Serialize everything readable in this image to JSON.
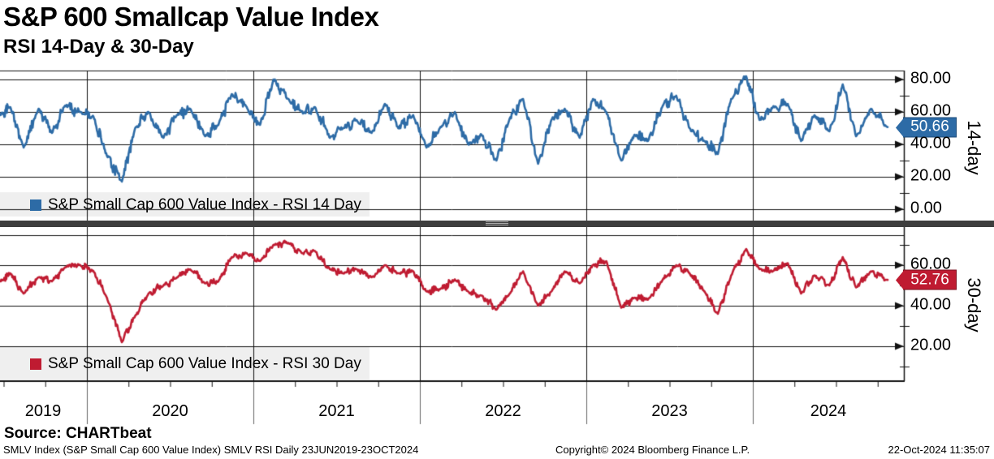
{
  "title": "S&P 600 Smallcap Value Index",
  "subtitle": "RSI 14-Day & 30-Day",
  "panels": [
    {
      "id": "rsi14",
      "legend": "S&P Small Cap 600 Value Index - RSI 14 Day",
      "axis_label": "14-day",
      "last_value": "50.66",
      "color": "#2d6ba6",
      "badge_border": "#1c4a78",
      "y_ticks": [
        "80.00",
        "60.00",
        "40.00",
        "20.00",
        "0.00"
      ]
    },
    {
      "id": "rsi30",
      "legend": "S&P Small Cap 600 Value Index - RSI 30 Day",
      "axis_label": "30-day",
      "last_value": "52.76",
      "color": "#bf1b31",
      "badge_border": "#7e1120",
      "y_ticks": [
        "60.00",
        "40.00",
        "20.00"
      ]
    }
  ],
  "x_axis": {
    "years": [
      "2019",
      "2020",
      "2021",
      "2022",
      "2023",
      "2024"
    ]
  },
  "source": "Source: CHARTbeat",
  "footer": {
    "left": "SMLV Index (S&P Small Cap 600 Value Index) SMLV RSI  Daily 23JUN2019-23OCT2024",
    "center": "Copyright© 2024 Bloomberg Finance L.P.",
    "right": "22-Oct-2024 11:35:07"
  },
  "chart_data": [
    {
      "type": "line",
      "name": "S&P Small Cap 600 Value Index - RSI 14 Day",
      "color": "#2d6ba6",
      "x_unit": "decimal_year",
      "sampling": "monthly approximation of the daily RSI series",
      "x_range": [
        2019.48,
        2024.81
      ],
      "ylim": [
        0,
        80
      ],
      "y_tick_values": [
        0,
        20,
        40,
        60,
        80
      ],
      "grid": true,
      "legend_position": "bottom-left",
      "last_value": 50.66,
      "x": [
        2019.48,
        2019.54,
        2019.62,
        2019.71,
        2019.79,
        2019.87,
        2019.96,
        2020.04,
        2020.12,
        2020.21,
        2020.29,
        2020.37,
        2020.46,
        2020.54,
        2020.62,
        2020.71,
        2020.79,
        2020.87,
        2020.96,
        2021.04,
        2021.12,
        2021.21,
        2021.29,
        2021.37,
        2021.46,
        2021.54,
        2021.62,
        2021.71,
        2021.79,
        2021.87,
        2021.96,
        2022.04,
        2022.12,
        2022.21,
        2022.29,
        2022.37,
        2022.46,
        2022.54,
        2022.62,
        2022.71,
        2022.79,
        2022.87,
        2022.96,
        2023.04,
        2023.12,
        2023.21,
        2023.29,
        2023.37,
        2023.46,
        2023.54,
        2023.62,
        2023.71,
        2023.79,
        2023.87,
        2023.96,
        2024.04,
        2024.12,
        2024.21,
        2024.29,
        2024.37,
        2024.46,
        2024.54,
        2024.62,
        2024.71,
        2024.81
      ],
      "y": [
        58,
        63,
        38,
        62,
        47,
        64,
        60,
        57,
        33,
        17,
        50,
        60,
        44,
        58,
        62,
        45,
        52,
        71,
        63,
        52,
        80,
        68,
        60,
        63,
        44,
        50,
        55,
        47,
        65,
        50,
        58,
        38,
        50,
        60,
        40,
        46,
        30,
        56,
        68,
        28,
        55,
        62,
        44,
        68,
        60,
        30,
        46,
        42,
        64,
        70,
        50,
        42,
        34,
        68,
        82,
        55,
        63,
        65,
        42,
        58,
        48,
        77,
        45,
        62,
        50.66
      ]
    },
    {
      "type": "line",
      "name": "S&P Small Cap 600 Value Index - RSI 30 Day",
      "color": "#bf1b31",
      "x_unit": "decimal_year",
      "sampling": "monthly approximation of the daily RSI series",
      "x_range": [
        2019.48,
        2024.81
      ],
      "ylim": [
        0,
        80
      ],
      "y_tick_values": [
        20,
        40,
        60
      ],
      "grid": true,
      "legend_position": "bottom-left",
      "last_value": 52.76,
      "x": [
        2019.48,
        2019.54,
        2019.62,
        2019.71,
        2019.79,
        2019.87,
        2019.96,
        2020.04,
        2020.12,
        2020.21,
        2020.29,
        2020.37,
        2020.46,
        2020.54,
        2020.62,
        2020.71,
        2020.79,
        2020.87,
        2020.96,
        2021.04,
        2021.12,
        2021.21,
        2021.29,
        2021.37,
        2021.46,
        2021.54,
        2021.62,
        2021.71,
        2021.79,
        2021.87,
        2021.96,
        2022.04,
        2022.12,
        2022.21,
        2022.29,
        2022.37,
        2022.46,
        2022.54,
        2022.62,
        2022.71,
        2022.79,
        2022.87,
        2022.96,
        2023.04,
        2023.12,
        2023.21,
        2023.29,
        2023.37,
        2023.46,
        2023.54,
        2023.62,
        2023.71,
        2023.79,
        2023.87,
        2023.96,
        2024.04,
        2024.12,
        2024.21,
        2024.29,
        2024.37,
        2024.46,
        2024.54,
        2024.62,
        2024.71,
        2024.81
      ],
      "y": [
        52,
        56,
        46,
        54,
        52,
        59,
        60,
        57,
        44,
        22,
        35,
        46,
        50,
        54,
        58,
        51,
        52,
        64,
        66,
        62,
        70,
        71,
        66,
        67,
        58,
        56,
        58,
        54,
        60,
        56,
        57,
        47,
        48,
        53,
        47,
        45,
        38,
        46,
        57,
        40,
        47,
        57,
        51,
        60,
        62,
        39,
        44,
        43,
        53,
        60,
        56,
        47,
        36,
        55,
        68,
        58,
        57,
        61,
        46,
        55,
        50,
        64,
        49,
        57,
        52.76
      ]
    }
  ]
}
